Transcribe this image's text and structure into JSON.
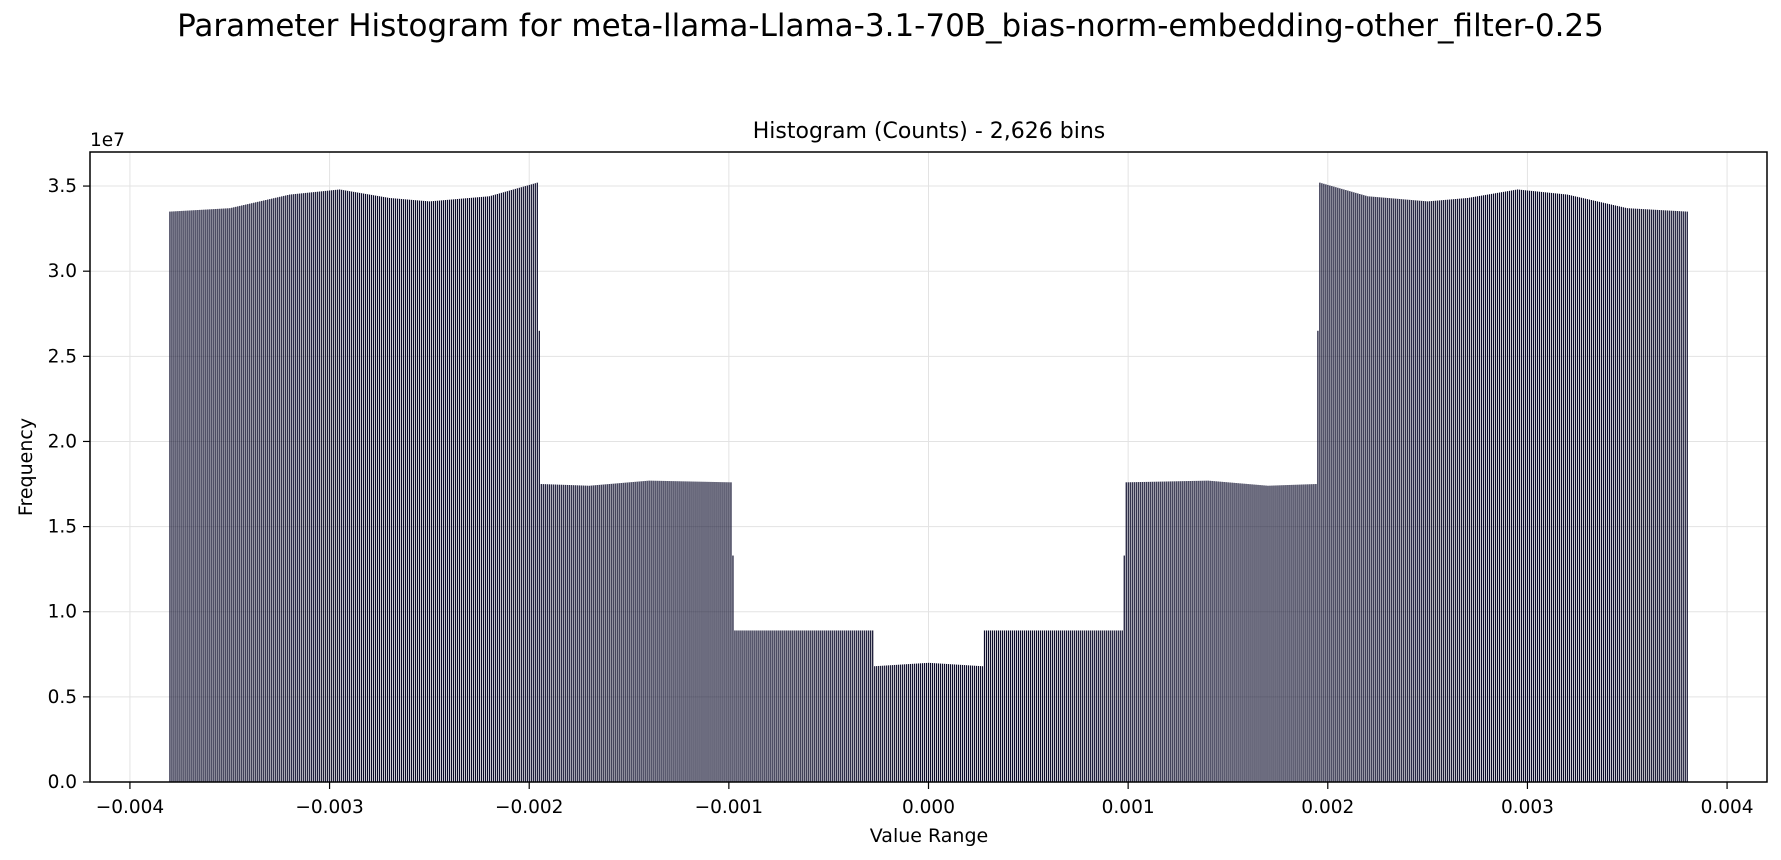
{
  "figure": {
    "title": "Parameter Histogram for meta-llama-Llama-3.1-70B_bias-norm-embedding-other_filter-0.25"
  },
  "chart_data": {
    "type": "bar",
    "title": "Histogram (Counts) - 2,626 bins",
    "xlabel": "Value Range",
    "ylabel": "Frequency",
    "y_multiplier_label": "1e7",
    "xlim": [
      -0.0042,
      0.0042
    ],
    "ylim": [
      0,
      3.7
    ],
    "xticks": [
      -0.004,
      -0.003,
      -0.002,
      -0.001,
      0.0,
      0.001,
      0.002,
      0.003,
      0.004
    ],
    "xtick_labels": [
      "−0.004",
      "−0.003",
      "−0.002",
      "−0.001",
      "0.000",
      "0.001",
      "0.002",
      "0.003",
      "0.004"
    ],
    "yticks": [
      0.0,
      0.5,
      1.0,
      1.5,
      2.0,
      2.5,
      3.0,
      3.5
    ],
    "ytick_labels": [
      "0.0",
      "0.5",
      "1.0",
      "1.5",
      "2.0",
      "2.5",
      "3.0",
      "3.5"
    ],
    "grid": true,
    "bar_color": "#0b0b2a",
    "bins": 2626,
    "profile": [
      {
        "x": -0.0038,
        "y": 3.35
      },
      {
        "x": -0.0035,
        "y": 3.37
      },
      {
        "x": -0.0032,
        "y": 3.45
      },
      {
        "x": -0.00295,
        "y": 3.48
      },
      {
        "x": -0.0027,
        "y": 3.43
      },
      {
        "x": -0.0025,
        "y": 3.41
      },
      {
        "x": -0.0022,
        "y": 3.44
      },
      {
        "x": -0.00196,
        "y": 3.52
      },
      {
        "x": -0.00195,
        "y": 2.65
      },
      {
        "x": -0.00194,
        "y": 1.75
      },
      {
        "x": -0.0017,
        "y": 1.74
      },
      {
        "x": -0.0014,
        "y": 1.77
      },
      {
        "x": -0.00099,
        "y": 1.76
      },
      {
        "x": -0.00098,
        "y": 1.33
      },
      {
        "x": -0.00097,
        "y": 0.89
      },
      {
        "x": -0.0006,
        "y": 0.89
      },
      {
        "x": -0.00028,
        "y": 0.89
      },
      {
        "x": -0.00027,
        "y": 0.68
      },
      {
        "x": 0.0,
        "y": 0.7
      },
      {
        "x": 0.00027,
        "y": 0.68
      },
      {
        "x": 0.00028,
        "y": 0.89
      },
      {
        "x": 0.0006,
        "y": 0.89
      },
      {
        "x": 0.00097,
        "y": 0.89
      },
      {
        "x": 0.00098,
        "y": 1.33
      },
      {
        "x": 0.00099,
        "y": 1.76
      },
      {
        "x": 0.0014,
        "y": 1.77
      },
      {
        "x": 0.0017,
        "y": 1.74
      },
      {
        "x": 0.00194,
        "y": 1.75
      },
      {
        "x": 0.00195,
        "y": 2.65
      },
      {
        "x": 0.00196,
        "y": 3.52
      },
      {
        "x": 0.0022,
        "y": 3.44
      },
      {
        "x": 0.0025,
        "y": 3.41
      },
      {
        "x": 0.0027,
        "y": 3.43
      },
      {
        "x": 0.00295,
        "y": 3.48
      },
      {
        "x": 0.0032,
        "y": 3.45
      },
      {
        "x": 0.0035,
        "y": 3.37
      },
      {
        "x": 0.0038,
        "y": 3.35
      }
    ]
  }
}
